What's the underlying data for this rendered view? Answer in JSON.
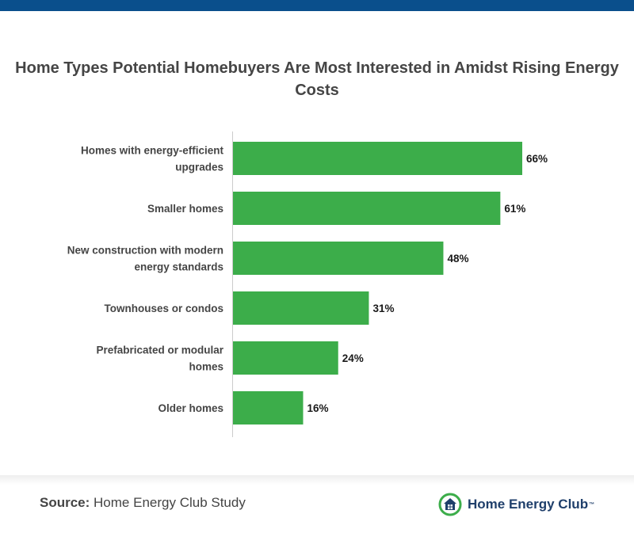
{
  "chart_data": {
    "type": "bar",
    "orientation": "horizontal",
    "title": "Home Types Potential Homebuyers Are Most Interested in Amidst Rising Energy Costs",
    "categories": [
      [
        "Homes with energy-efficient",
        "upgrades"
      ],
      [
        "Smaller homes"
      ],
      [
        "New construction with modern",
        "energy standards"
      ],
      [
        "Townhouses or condos"
      ],
      [
        "Prefabricated or modular",
        "homes"
      ],
      [
        "Older homes"
      ]
    ],
    "values": [
      66,
      61,
      48,
      31,
      24,
      16
    ],
    "value_labels": [
      "66%",
      "61%",
      "48%",
      "31%",
      "24%",
      "16%"
    ],
    "unit": "%",
    "grid": false,
    "legend": "none",
    "colors": {
      "bar": "#3cad4a",
      "axis": "#cccccc",
      "header_band": "#0a4f8c"
    }
  },
  "footer": {
    "source_label": "Source:",
    "source_text": "Home Energy Club Study",
    "brand_name": "Home Energy Club",
    "brand_tm": "™",
    "brand_icon": "house-logo-icon"
  }
}
